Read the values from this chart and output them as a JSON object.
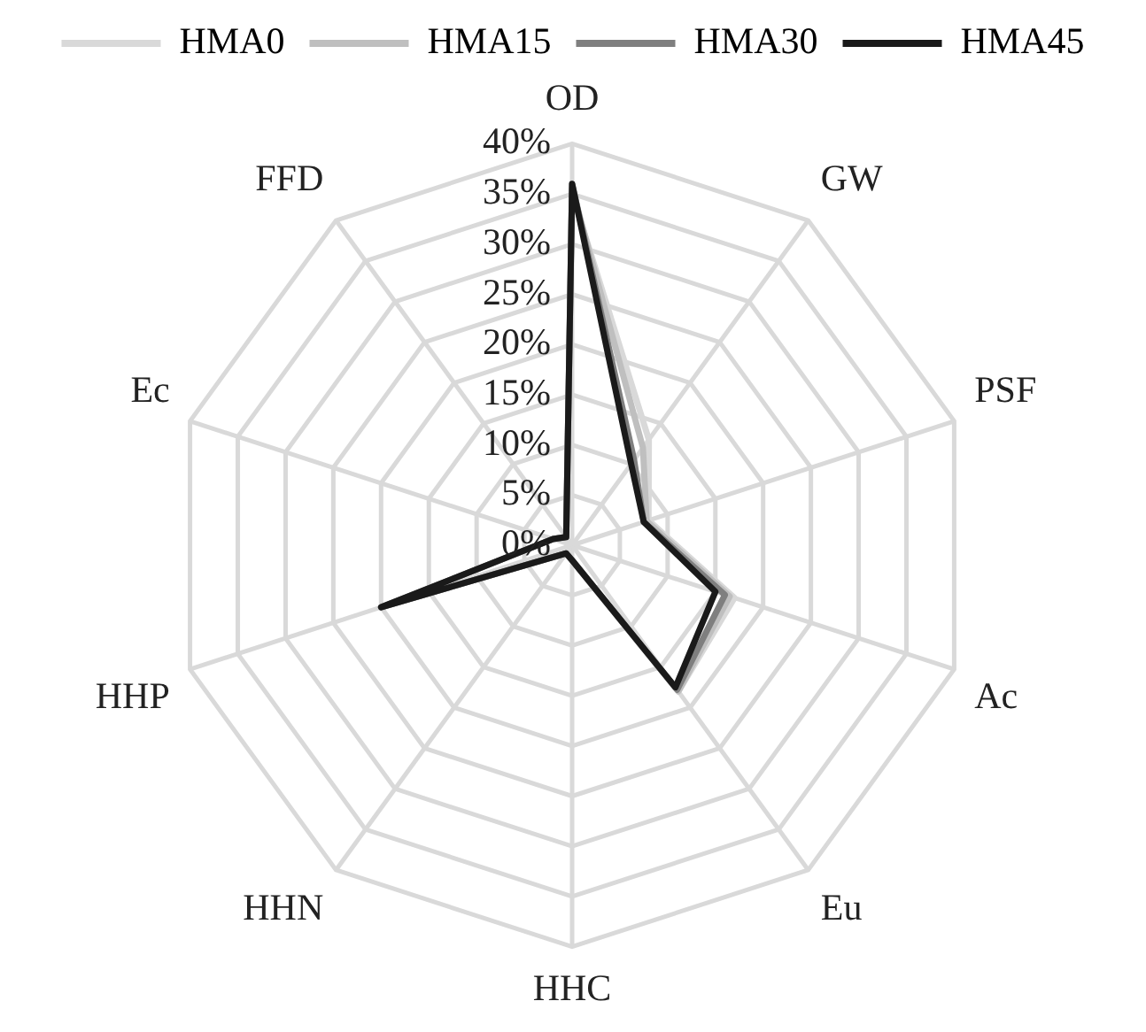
{
  "chart_data": {
    "type": "radar",
    "categories": [
      "OD",
      "GW",
      "PSF",
      "Ac",
      "Eu",
      "HHC",
      "HHN",
      "HHP",
      "Ec",
      "FFD"
    ],
    "series": [
      {
        "name": "HMA0",
        "color": "#d9d9d9",
        "values": [
          35,
          13,
          8,
          17,
          18,
          1.5,
          1,
          19.5,
          2,
          1
        ]
      },
      {
        "name": "HMA15",
        "color": "#bfbfbf",
        "values": [
          35.5,
          12,
          7.8,
          16.5,
          18,
          1.5,
          1,
          19.5,
          2,
          1
        ]
      },
      {
        "name": "HMA30",
        "color": "#7f7f7f",
        "values": [
          36,
          10.5,
          7.5,
          16,
          17.8,
          1.5,
          1,
          20,
          2,
          1
        ]
      },
      {
        "name": "HMA45",
        "color": "#1a1a1a",
        "values": [
          36,
          10,
          7.5,
          15,
          17.5,
          1.5,
          1,
          20,
          2,
          1
        ]
      }
    ],
    "ylim": [
      0,
      40
    ],
    "yticks": [
      {
        "value": 0,
        "label": "0%"
      },
      {
        "value": 5,
        "label": "5%"
      },
      {
        "value": 10,
        "label": "10%"
      },
      {
        "value": 15,
        "label": "15%"
      },
      {
        "value": 20,
        "label": "20%"
      },
      {
        "value": 25,
        "label": "25%"
      },
      {
        "value": 30,
        "label": "30%"
      },
      {
        "value": 35,
        "label": "35%"
      },
      {
        "value": 40,
        "label": "40%"
      }
    ],
    "grid": true,
    "legend": "top",
    "marker": "none",
    "line_style": "solid"
  }
}
